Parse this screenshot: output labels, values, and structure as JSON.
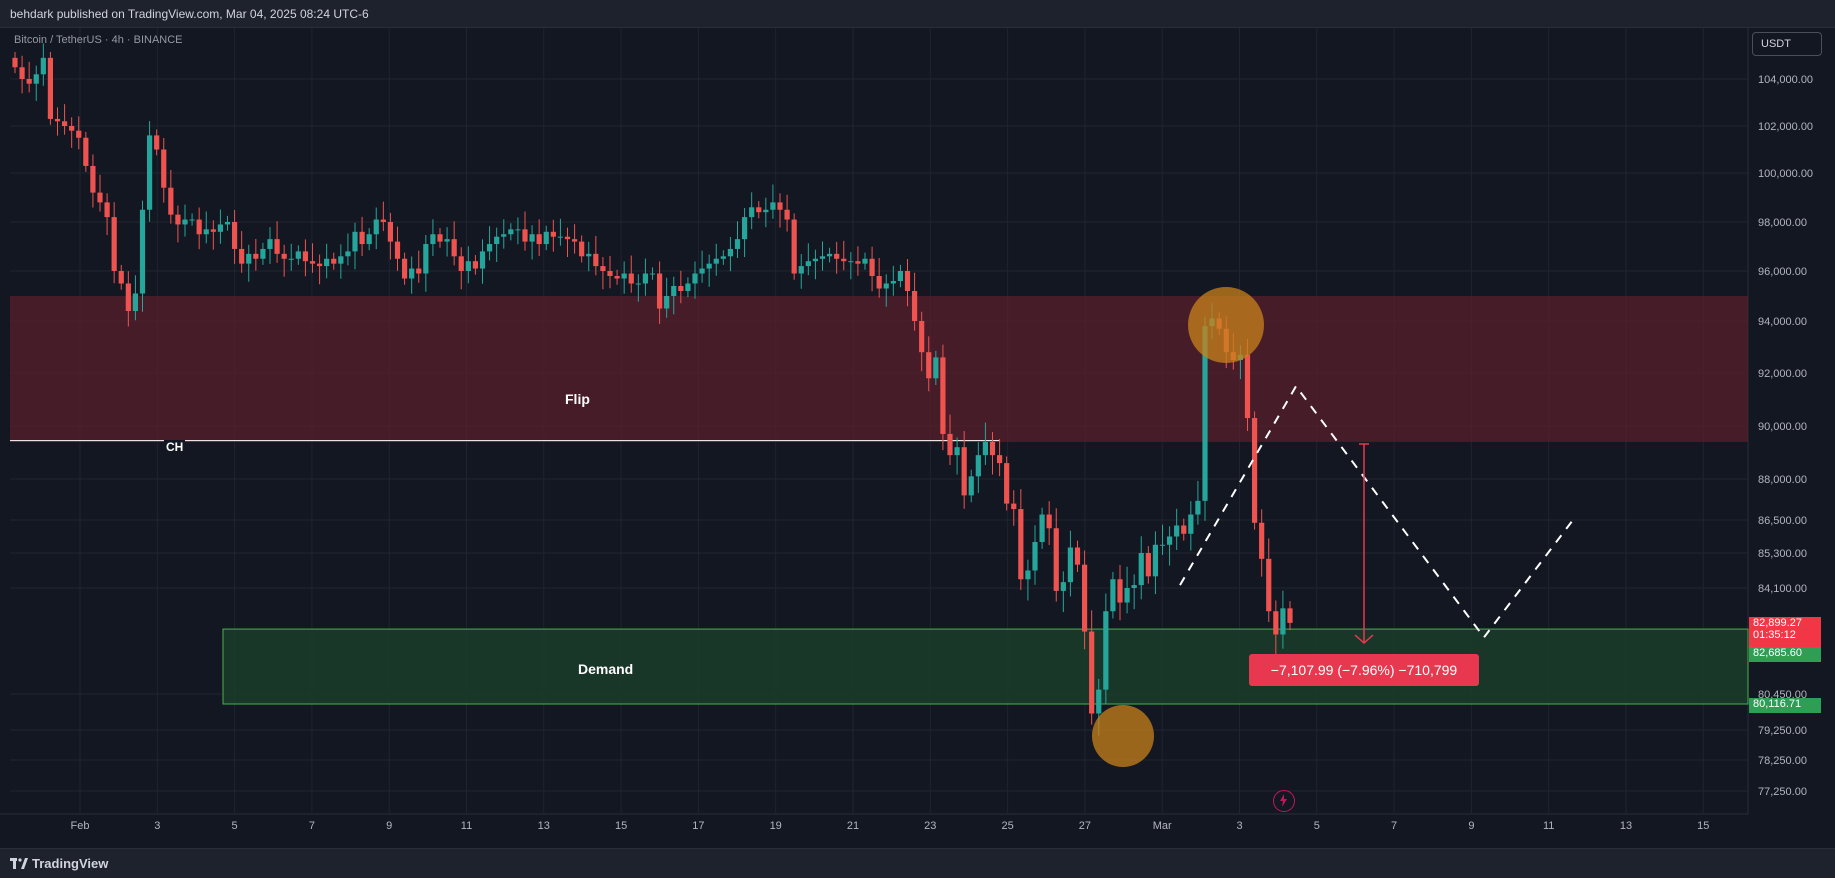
{
  "header": {
    "publisher_text": "behdark published on TradingView.com, Mar 04, 2025 08:24 UTC-6"
  },
  "legend": {
    "symbol_text": "Bitcoin / TetherUS · 4h · BINANCE"
  },
  "currency_button": {
    "label": "USDT"
  },
  "footer": {
    "brand": "TradingView",
    "logo_icon": "tradingview-logo-icon"
  },
  "price_tags": {
    "last_price": "82,899.27",
    "countdown": "01:35:12",
    "demand_top": "82,685.60",
    "demand_bottom": "80,116.71"
  },
  "measurement": {
    "label": "−7,107.99 (−7.96%) −710,799"
  },
  "annotations": {
    "flip_label": "Flip",
    "demand_label": "Demand",
    "ch_label": "CH"
  },
  "colors": {
    "background": "#131722",
    "bull": "#26a69a",
    "bear": "#ef5350",
    "flip_zone": "#5a1f2c",
    "demand_zone": "#1b3d2a",
    "highlight_circle": "#c8821a",
    "measure": "#e8384f"
  },
  "chart_data": {
    "type": "candlestick",
    "symbol": "Bitcoin / TetherUS",
    "interval": "4h",
    "exchange": "BINANCE",
    "x_tick_labels": [
      "Feb",
      "3",
      "5",
      "7",
      "9",
      "11",
      "13",
      "15",
      "17",
      "19",
      "21",
      "23",
      "25",
      "27",
      "Mar",
      "3",
      "5",
      "7",
      "9",
      "11",
      "13",
      "15"
    ],
    "y_tick_labels": [
      "104,000.00",
      "102,000.00",
      "100,000.00",
      "98,000.00",
      "96,000.00",
      "94,000.00",
      "92,000.00",
      "90,000.00",
      "88,000.00",
      "86,500.00",
      "85,300.00",
      "84,100.00",
      "80,450.00",
      "79,250.00",
      "78,250.00",
      "77,250.00"
    ],
    "zones": [
      {
        "name": "Flip",
        "top": 95000,
        "bottom": 89400
      },
      {
        "name": "Demand",
        "top": 82685.6,
        "bottom": 80116.71
      }
    ],
    "ch_level": 89450,
    "projection": [
      [
        84200,
        "down-start"
      ],
      [
        91500,
        "peak"
      ],
      [
        82400,
        "trough"
      ],
      [
        86600,
        "end"
      ]
    ],
    "closes": [
      104500,
      104000,
      103800,
      104200,
      104900,
      102300,
      102200,
      102000,
      101800,
      101500,
      100300,
      99200,
      98800,
      98200,
      96000,
      95500,
      94400,
      95100,
      98500,
      101600,
      101000,
      99400,
      98300,
      97900,
      98100,
      98100,
      97500,
      97700,
      97600,
      97900,
      98000,
      96900,
      96300,
      96700,
      96500,
      96900,
      97300,
      96700,
      96500,
      96500,
      96800,
      96400,
      96300,
      96200,
      96500,
      96300,
      96600,
      96800,
      97600,
      97100,
      97500,
      98100,
      98000,
      97200,
      96500,
      95700,
      96100,
      95900,
      97100,
      97500,
      97200,
      97300,
      96600,
      96000,
      96400,
      96100,
      96800,
      97100,
      97400,
      97500,
      97700,
      97700,
      97200,
      97500,
      97100,
      97600,
      97400,
      97400,
      97300,
      97200,
      96600,
      96700,
      96200,
      96000,
      95800,
      95700,
      95900,
      95500,
      95500,
      95900,
      95900,
      94500,
      95000,
      95400,
      95200,
      95500,
      95900,
      96100,
      96300,
      96500,
      96600,
      96900,
      97300,
      98200,
      98600,
      98400,
      98500,
      98800,
      98500,
      98100,
      95900,
      96200,
      96400,
      96500,
      96600,
      96700,
      96500,
      96400,
      96400,
      96300,
      96500,
      95800,
      95300,
      95500,
      95600,
      96000,
      95200,
      94000,
      92800,
      91800,
      92600,
      89700,
      88900,
      89200,
      87400,
      88100,
      88900,
      89400,
      88900,
      88600,
      87100,
      86900,
      84400,
      84700,
      85700,
      86700,
      86200,
      84000,
      84300,
      85500,
      84900,
      82600,
      79800,
      80600,
      83300,
      84400,
      83600,
      84100,
      84200,
      85300,
      84500,
      85600,
      85600,
      85900,
      86300,
      86000,
      86700,
      87200,
      93800,
      94100,
      93700,
      92800,
      92500,
      92700,
      90300,
      86400,
      85100,
      83300,
      82500,
      83400,
      82899.27
    ]
  }
}
